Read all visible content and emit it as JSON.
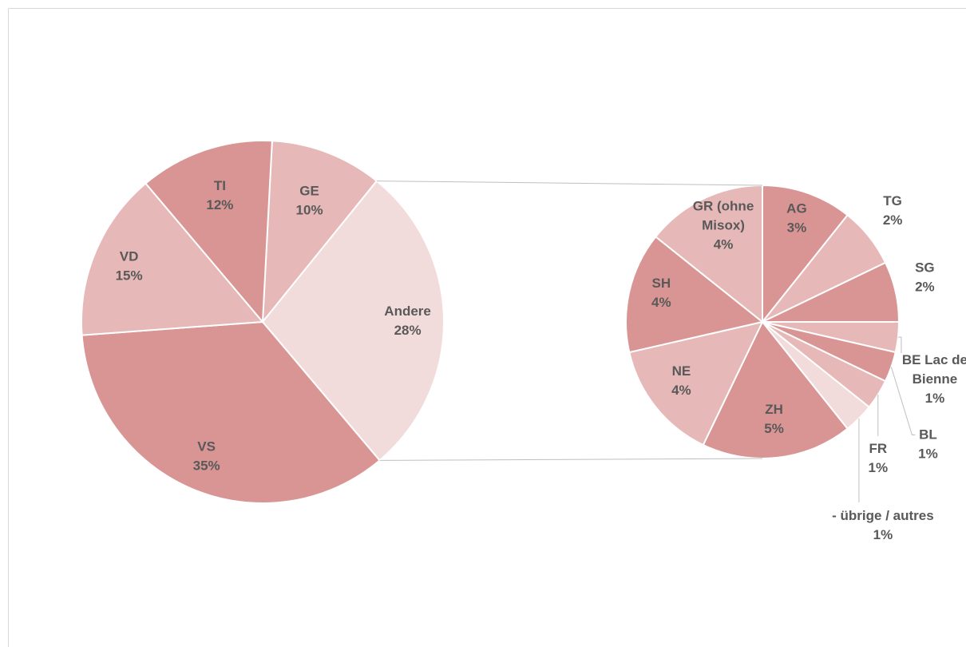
{
  "colors": {
    "pie_fills": [
      "#d99594",
      "#e6b8b7",
      "#f2dcdb"
    ],
    "slice_border": "#ffffff",
    "label": "#595959",
    "connector": "#bfbfbf",
    "frame": "#d9d9d9"
  },
  "chart_data": {
    "type": "pie",
    "subtype": "pie-of-pie",
    "legend": "none",
    "main": {
      "slices": [
        {
          "label": "GE",
          "value": 10,
          "pct_label": "10%"
        },
        {
          "label": "Andere",
          "value": 28,
          "pct_label": "28%"
        },
        {
          "label": "VS",
          "value": 35,
          "pct_label": "35%"
        },
        {
          "label": "VD",
          "value": 15,
          "pct_label": "15%"
        },
        {
          "label": "TI",
          "value": 12,
          "pct_label": "12%"
        }
      ]
    },
    "secondary": {
      "slices": [
        {
          "label": "AG",
          "value": 3,
          "pct_label": "3%"
        },
        {
          "label": "TG",
          "value": 2,
          "pct_label": "2%"
        },
        {
          "label": "SG",
          "value": 2,
          "pct_label": "2%"
        },
        {
          "label": "BE Lac de Bienne",
          "value": 1,
          "pct_label": "1%"
        },
        {
          "label": "BL",
          "value": 1,
          "pct_label": "1%"
        },
        {
          "label": "FR",
          "value": 1,
          "pct_label": "1%"
        },
        {
          "label": "- übrige / autres",
          "value": 1,
          "pct_label": "1%"
        },
        {
          "label": "ZH",
          "value": 5,
          "pct_label": "5%"
        },
        {
          "label": "NE",
          "value": 4,
          "pct_label": "4%"
        },
        {
          "label": "SH",
          "value": 4,
          "pct_label": "4%"
        },
        {
          "label": "GR (ohne Misox)",
          "value": 4,
          "pct_label": "4%"
        }
      ]
    }
  }
}
